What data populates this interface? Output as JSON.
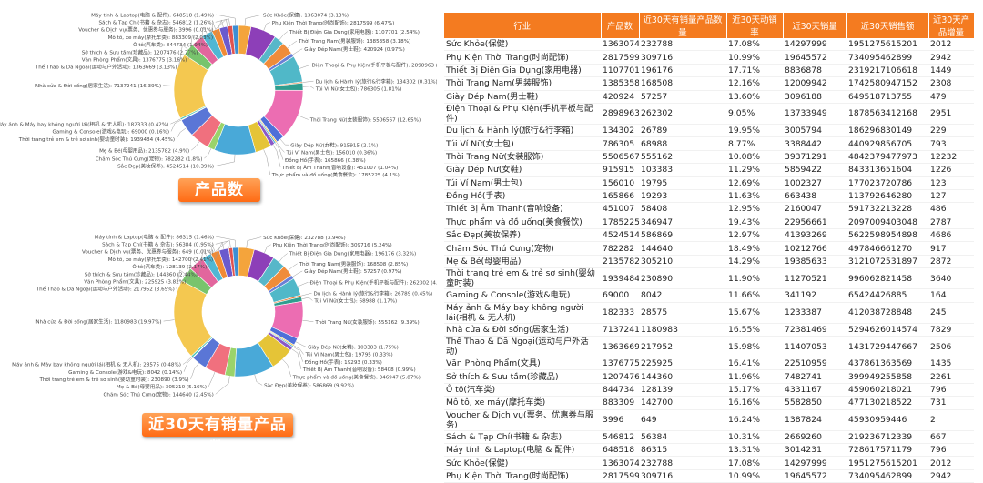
{
  "banners": {
    "top": "产品数",
    "bottom": "近30天有销量产品数"
  },
  "chart_data": [
    {
      "type": "pie",
      "subtype": "donut",
      "title": "产品数",
      "legend": false,
      "labels": [
        "Sức Khỏe(保健)",
        "Phụ Kiện Thời Trang(时尚配饰)",
        "Thiết Bị Điện Gia Dụng(家用电器)",
        "Thời Trang Nam(男装服饰)",
        "Giày Dép Nam(男士鞋)",
        "Điện Thoại & Phụ Kiện(手机平板与配件)",
        "Du lịch & Hành lý(旅行&行李箱)",
        "Túi Ví Nữ(女士包)",
        "Thời Trang Nữ(女装服饰)",
        "Giày Dép Nữ(女鞋)",
        "Túi Ví Nam(男士包)",
        "Đồng Hồ(手表)",
        "Thiết Bị Âm Thanh(音响设备)",
        "Thực phẩm và đồ uống(美食餐饮)",
        "Sắc Đẹp(美妆保养)",
        "Chăm Sóc Thú Cưng(宠物)",
        "Mẹ & Bé(母婴用品)",
        "Thời trang trẻ em & trẻ sơ sinh(婴幼童时装)",
        "Gaming & Console(游戏&电玩)",
        "Máy ảnh & Máy bay không người lái(相机 & 无人机)",
        "Nhà cửa & Đời sống(居家生活)",
        "Thể Thao & Dã Ngoại(运动与户外活动)",
        "Văn Phòng Phẩm(文具)",
        "Sở thích & Sưu tầm(珍藏品)",
        "Ô tô(汽车类)",
        "Mô tô, xe máy(摩托车类)",
        "Voucher & Dịch vụ(票务、优惠券与服务)",
        "Sách & Tạp Chí(书籍 & 杂志)",
        "Máy tính & Laptop(电脑 & 配件)"
      ],
      "values": [
        1363074,
        2817599,
        1107701,
        1385358,
        420924,
        2898963,
        134302,
        786305,
        5506567,
        915915,
        156010,
        165866,
        451007,
        1785225,
        4524514,
        782282,
        2135782,
        1939484,
        69000,
        182333,
        7137241,
        1363669,
        1376775,
        1207476,
        844734,
        883309,
        3996,
        546812,
        648518
      ],
      "percents": [
        "3.13%",
        "6.47%",
        "2.54%",
        "3.18%",
        "0.97%",
        "6.66%",
        "0.31%",
        "1.81%",
        "12.65%",
        "2.1%",
        "0.36%",
        "0.38%",
        "1.04%",
        "4.1%",
        "10.39%",
        "1.8%",
        "4.9%",
        "4.45%",
        "0.16%",
        "0.42%",
        "16.39%",
        "3.13%",
        "3.16%",
        "2.77%",
        "1.94%",
        "2.03%",
        "0.01%",
        "1.26%",
        "1.49%"
      ],
      "colors": [
        "#f4a43c",
        "#8d3fb8",
        "#57b7c9",
        "#f08c3a",
        "#6a7fd6",
        "#50b8c8",
        "#e67d3a",
        "#2f9e8f",
        "#ec6db2",
        "#4f6fd8",
        "#f3bf34",
        "#3aa8d0",
        "#8a58c7",
        "#e5c437",
        "#49a9d8",
        "#9ad36a",
        "#f0707e",
        "#5a76d6",
        "#f59c5a",
        "#49c4b4",
        "#f4c850",
        "#78c46d",
        "#e2669d",
        "#4fb7d4",
        "#f08a35",
        "#6a5acd",
        "#43a0a0",
        "#e0534f",
        "#3d8ed4"
      ]
    },
    {
      "type": "pie",
      "subtype": "donut",
      "title": "近30天有销量产品数",
      "legend": false,
      "labels": [
        "Sức Khỏe(保健)",
        "Phụ Kiện Thời Trang(时尚配饰)",
        "Thiết Bị Điện Gia Dụng(家用电器)",
        "Thời Trang Nam(男装服饰)",
        "Giày Dép Nam(男士鞋)",
        "Điện Thoại & Phụ Kiện(手机平板与配件)",
        "Du lịch & Hành lý(旅行&行李箱)",
        "Túi Ví Nữ(女士包)",
        "Thời Trang Nữ(女装服饰)",
        "Giày Dép Nữ(女鞋)",
        "Túi Ví Nam(男士包)",
        "Đồng Hồ(手表)",
        "Thiết Bị Âm Thanh(音响设备)",
        "Thực phẩm và đồ uống(美食餐饮)",
        "Sắc Đẹp(美妆保养)",
        "Chăm Sóc Thú Cưng(宠物)",
        "Mẹ & Bé(母婴用品)",
        "Thời trang trẻ em & trẻ sơ sinh(婴幼童时装)",
        "Gaming & Console(游戏&电玩)",
        "Máy ảnh & Máy bay không người lái(相机 & 无人机)",
        "Nhà cửa & Đời sống(居家生活)",
        "Thể Thao & Dã Ngoại(运动与户外活动)",
        "Văn Phòng Phẩm(文具)",
        "Sở thích & Sưu tầm(珍藏品)",
        "Ô tô(汽车类)",
        "Mô tô, xe máy(摩托车类)",
        "Voucher & Dịch vụ(票务、优惠券与服务)",
        "Sách & Tạp Chí(书籍 & 杂志)",
        "Máy tính & Laptop(电脑 & 配件)"
      ],
      "values": [
        232788,
        309716,
        196176,
        168508,
        57257,
        262302,
        26789,
        68988,
        555162,
        103383,
        19795,
        19293,
        58408,
        346947,
        586869,
        144640,
        305210,
        230890,
        8042,
        28575,
        1180983,
        217952,
        225925,
        144360,
        128139,
        142700,
        649,
        56384,
        86315
      ],
      "percents": [
        "3.94%",
        "5.24%",
        "3.32%",
        "2.85%",
        "0.97%",
        "4.44%",
        "0.45%",
        "1.17%",
        "9.39%",
        "1.75%",
        "0.33%",
        "0.33%",
        "0.99%",
        "5.87%",
        "9.92%",
        "2.45%",
        "5.16%",
        "3.9%",
        "0.14%",
        "0.48%",
        "19.97%",
        "3.69%",
        "3.82%",
        "2.44%",
        "2.17%",
        "2.41%",
        "0.01%",
        "0.95%",
        "1.46%"
      ],
      "colors": [
        "#f4a43c",
        "#8d3fb8",
        "#57b7c9",
        "#f08c3a",
        "#6a7fd6",
        "#50b8c8",
        "#e67d3a",
        "#2f9e8f",
        "#ec6db2",
        "#4f6fd8",
        "#f3bf34",
        "#3aa8d0",
        "#8a58c7",
        "#e5c437",
        "#49a9d8",
        "#9ad36a",
        "#f0707e",
        "#5a76d6",
        "#f59c5a",
        "#49c4b4",
        "#f4c850",
        "#78c46d",
        "#e2669d",
        "#4fb7d4",
        "#f08a35",
        "#6a5acd",
        "#43a0a0",
        "#e0534f",
        "#3d8ed4"
      ]
    },
    {
      "type": "table",
      "headers": [
        "行业",
        "产品数",
        "近30天有销量产品数量",
        "近30天动销率",
        "近30天销量",
        "近30天销售额",
        "近30天产品增量"
      ],
      "rows": [
        [
          "Sức Khỏe(保健)",
          "1363074",
          "232788",
          "17.08%",
          "14297999",
          "1951275615201",
          "2012"
        ],
        [
          "Phụ Kiện Thời Trang(时尚配饰)",
          "2817599",
          "309716",
          "10.99%",
          "19645572",
          "734095462899",
          "2942"
        ],
        [
          "Thiết Bị Điện Gia Dụng(家用电器)",
          "1107701",
          "196176",
          "17.71%",
          "8836878",
          "2319217106618",
          "1449"
        ],
        [
          "Thời Trang Nam(男装服饰)",
          "1385358",
          "168508",
          "12.16%",
          "12009942",
          "1742580947152",
          "2308"
        ],
        [
          "Giày Dép Nam(男士鞋)",
          "420924",
          "57257",
          "13.60%",
          "3096188",
          "649518713755",
          "479"
        ],
        [
          "Điện Thoại & Phụ Kiện(手机平板与配件)",
          "2898963",
          "262302",
          "9.05%",
          "13733949",
          "1878563412168",
          "2951"
        ],
        [
          "Du lịch & Hành lý(旅行&行李箱)",
          "134302",
          "26789",
          "19.95%",
          "3005794",
          "186296830149",
          "229"
        ],
        [
          "Túi Ví Nữ(女士包)",
          "786305",
          "68988",
          "8.77%",
          "3388442",
          "440929856705",
          "793"
        ],
        [
          "Thời Trang Nữ(女装服饰)",
          "5506567",
          "555162",
          "10.08%",
          "39371291",
          "4842379477973",
          "12232"
        ],
        [
          "Giày Dép Nữ(女鞋)",
          "915915",
          "103383",
          "11.29%",
          "5859422",
          "843313651604",
          "1226"
        ],
        [
          "Túi Ví Nam(男士包)",
          "156010",
          "19795",
          "12.69%",
          "1002327",
          "177023720786",
          "123"
        ],
        [
          "Đồng Hồ(手表)",
          "165866",
          "19293",
          "11.63%",
          "663438",
          "113792646280",
          "127"
        ],
        [
          "Thiết Bị Âm Thanh(音响设备)",
          "451007",
          "58408",
          "12.95%",
          "2160047",
          "591732213228",
          "486"
        ],
        [
          "Thực phẩm và đồ uống(美食餐饮)",
          "1785225",
          "346947",
          "19.43%",
          "22956661",
          "2097009403048",
          "2787"
        ],
        [
          "Sắc Đẹp(美妆保养)",
          "4524514",
          "586869",
          "12.97%",
          "41393269",
          "5622598954898",
          "4686"
        ],
        [
          "Chăm Sóc Thú Cưng(宠物)",
          "782282",
          "144640",
          "18.49%",
          "10212766",
          "497846661270",
          "917"
        ],
        [
          "Mẹ & Bé(母婴用品)",
          "2135782",
          "305210",
          "14.29%",
          "19385633",
          "3121072531897",
          "2872"
        ],
        [
          "Thời trang trẻ em & trẻ sơ sinh(婴幼童时装)",
          "1939484",
          "230890",
          "11.90%",
          "11270521",
          "996062821458",
          "3640"
        ],
        [
          "Gaming & Console(游戏&电玩)",
          "69000",
          "8042",
          "11.66%",
          "341192",
          "65424426885",
          "164"
        ],
        [
          "Máy ảnh & Máy bay không người lái(相机 & 无人机)",
          "182333",
          "28575",
          "15.67%",
          "1233387",
          "412038728848",
          "245"
        ],
        [
          "Nhà cửa & Đời sống(居家生活)",
          "7137241",
          "1180983",
          "16.55%",
          "72381469",
          "5294626014574",
          "7829"
        ],
        [
          "Thể Thao & Dã Ngoại(运动与户外活动)",
          "1363669",
          "217952",
          "15.98%",
          "11407053",
          "1431729447667",
          "2506"
        ],
        [
          "Văn Phòng Phẩm(文具)",
          "1376775",
          "225925",
          "16.41%",
          "22510959",
          "437861363569",
          "1435"
        ],
        [
          "Sở thích & Sưu tầm(珍藏品)",
          "1207476",
          "144360",
          "11.96%",
          "7482741",
          "399949255858",
          "2261"
        ],
        [
          "Ô tô(汽车类)",
          "844734",
          "128139",
          "15.17%",
          "4331167",
          "459060218021",
          "796"
        ],
        [
          "Mô tô, xe máy(摩托车类)",
          "883309",
          "142700",
          "16.16%",
          "5582850",
          "477130218522",
          "731"
        ],
        [
          "Voucher & Dịch vụ(票务、优惠券与服务)",
          "3996",
          "649",
          "16.24%",
          "1387824",
          "45930959446",
          "2"
        ],
        [
          "Sách & Tạp Chí(书籍 & 杂志)",
          "546812",
          "56384",
          "10.31%",
          "2669260",
          "219236712339",
          "667"
        ],
        [
          "Máy tính & Laptop(电脑 & 配件)",
          "648518",
          "86315",
          "13.31%",
          "3014231",
          "728617571179",
          "796"
        ],
        [
          "Sức Khỏe(保健)",
          "1363074",
          "232788",
          "17.08%",
          "14297999",
          "1951275615201",
          "2012"
        ],
        [
          "Phụ Kiện Thời Trang(时尚配饰)",
          "2817599",
          "309716",
          "10.99%",
          "19645572",
          "734095462899",
          "2942"
        ]
      ]
    }
  ]
}
